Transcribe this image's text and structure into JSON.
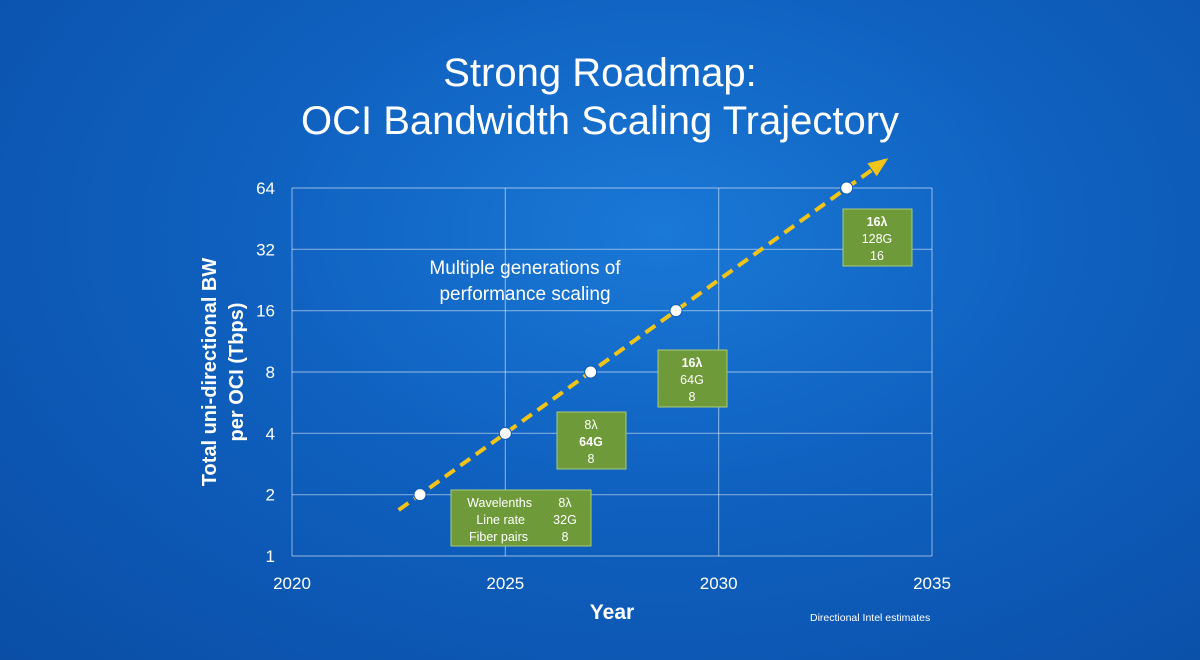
{
  "title_line1": "Strong Roadmap:",
  "title_line2": "OCI Bandwidth Scaling Trajectory",
  "chart_data": {
    "type": "scatter",
    "title": "Strong Roadmap: OCI Bandwidth Scaling Trajectory",
    "xlabel": "Year",
    "ylabel_line1": "Total uni-directional BW",
    "ylabel_line2": "per OCI (Tbps)",
    "xlim": [
      2020,
      2035
    ],
    "ylim": [
      1,
      64
    ],
    "yscale": "log2",
    "x_ticks": [
      "2020",
      "2025",
      "2030",
      "2035"
    ],
    "y_ticks": [
      "1",
      "2",
      "4",
      "8",
      "16",
      "32",
      "64"
    ],
    "grid": true,
    "points": [
      {
        "x": 2023,
        "y": 2
      },
      {
        "x": 2025,
        "y": 4
      },
      {
        "x": 2027,
        "y": 8
      },
      {
        "x": 2029,
        "y": 16
      },
      {
        "x": 2033,
        "y": 64
      }
    ],
    "trend_color": "#f2c418",
    "point_color": "#ffffff",
    "box_color": "#6f9a3a",
    "annotation_line1": "Multiple generations of",
    "annotation_line2": "performance scaling",
    "boxes": [
      {
        "rows": [
          {
            "label": "Wavelenths",
            "value": "8λ"
          },
          {
            "label": "Line rate",
            "value": "32G"
          },
          {
            "label": "Fiber pairs",
            "value": "8"
          }
        ]
      },
      {
        "lines": [
          "8λ",
          "64G",
          "8"
        ],
        "bold_index": 1
      },
      {
        "lines": [
          "16λ",
          "64G",
          "8"
        ],
        "bold_index": 0
      },
      {
        "lines": [
          "16λ",
          "128G",
          "16"
        ],
        "bold_index": 0
      }
    ],
    "footnote": "Directional Intel estimates"
  }
}
